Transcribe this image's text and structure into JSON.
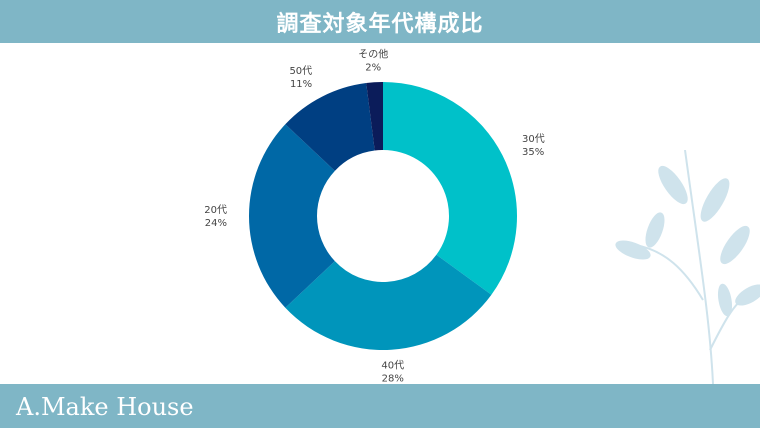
{
  "header": {
    "title": "調査対象年代構成比"
  },
  "footer": {
    "brand": "A.Make House"
  },
  "chart_data": {
    "type": "pie",
    "style": "donut",
    "title": "調査対象年代構成比",
    "categories": [
      "30代",
      "40代",
      "20代",
      "50代",
      "その他"
    ],
    "values": [
      35,
      28,
      24,
      11,
      2
    ],
    "value_labels": [
      "35%",
      "28%",
      "24%",
      "11%",
      "2%"
    ],
    "colors": [
      "#00c1c9",
      "#0095bb",
      "#0068a6",
      "#003f82",
      "#0b1c5a"
    ],
    "start": "12 o'clock",
    "direction": "clockwise",
    "legend": "none"
  }
}
